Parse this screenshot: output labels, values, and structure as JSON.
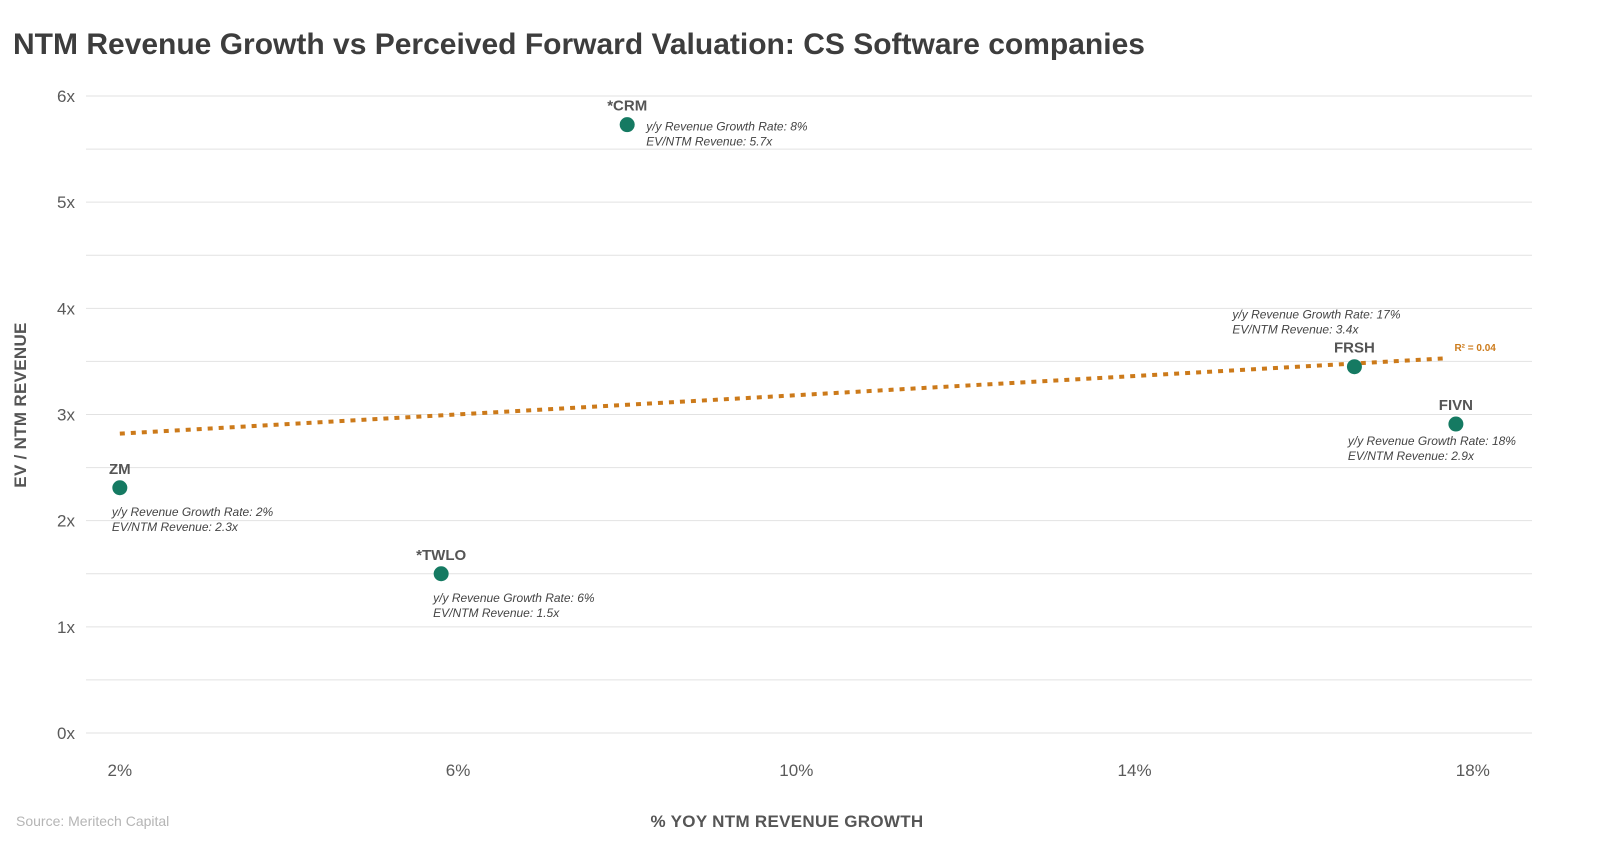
{
  "source": "Source: Meritech Capital",
  "colors": {
    "point": "#157a62",
    "trendline": "#cc7a1a",
    "grid": "#e2e2e2"
  },
  "chart_data": {
    "type": "scatter",
    "title": "NTM Revenue Growth vs Perceived Forward Valuation: CS Software companies",
    "xlabel": "% YOY NTM REVENUE GROWTH",
    "ylabel": "EV / NTM REVENUE",
    "xlim": [
      1.6,
      18.7
    ],
    "ylim": [
      0,
      6
    ],
    "x_ticks": [
      {
        "value": 2,
        "label": "2%"
      },
      {
        "value": 6,
        "label": "6%"
      },
      {
        "value": 10,
        "label": "10%"
      },
      {
        "value": 14,
        "label": "14%"
      },
      {
        "value": 18,
        "label": "18%"
      }
    ],
    "y_ticks": [
      {
        "value": 0,
        "label": "0x"
      },
      {
        "value": 1,
        "label": "1x"
      },
      {
        "value": 2,
        "label": "2x"
      },
      {
        "value": 3,
        "label": "3x"
      },
      {
        "value": 4,
        "label": "4x"
      },
      {
        "value": 5,
        "label": "5x"
      },
      {
        "value": 6,
        "label": "6x"
      }
    ],
    "minor_gridlines": [
      0.5,
      1.5,
      2.5,
      3.5,
      4.5,
      5.5
    ],
    "grid": true,
    "points": [
      {
        "name": "*CRM",
        "x": 8.0,
        "y": 5.73,
        "growth_text": "y/y Revenue Growth Rate: 8%",
        "ev_text": "EV/NTM Revenue: 5.7x",
        "label_pos": "above",
        "ann_pos": "right"
      },
      {
        "name": "FRSH",
        "x": 16.6,
        "y": 3.45,
        "growth_text": "y/y Revenue Growth Rate: 17%",
        "ev_text": "EV/NTM Revenue: 3.4x",
        "label_pos": "above",
        "ann_pos": "above-left"
      },
      {
        "name": "FIVN",
        "x": 17.8,
        "y": 2.91,
        "growth_text": "y/y Revenue Growth Rate: 18%",
        "ev_text": "EV/NTM Revenue: 2.9x",
        "label_pos": "above",
        "ann_pos": "below-left"
      },
      {
        "name": "ZM",
        "x": 2.0,
        "y": 2.31,
        "growth_text": "y/y Revenue Growth Rate: 2%",
        "ev_text": "EV/NTM Revenue: 2.3x",
        "label_pos": "above",
        "ann_pos": "below"
      },
      {
        "name": "*TWLO",
        "x": 5.8,
        "y": 1.5,
        "growth_text": "y/y Revenue Growth Rate: 6%",
        "ev_text": "EV/NTM Revenue: 1.5x",
        "label_pos": "above",
        "ann_pos": "below"
      }
    ],
    "trendline": {
      "x": [
        2.0,
        17.7
      ],
      "y": [
        2.82,
        3.53
      ],
      "style": "dotted",
      "label": "R² = 0.04"
    }
  }
}
